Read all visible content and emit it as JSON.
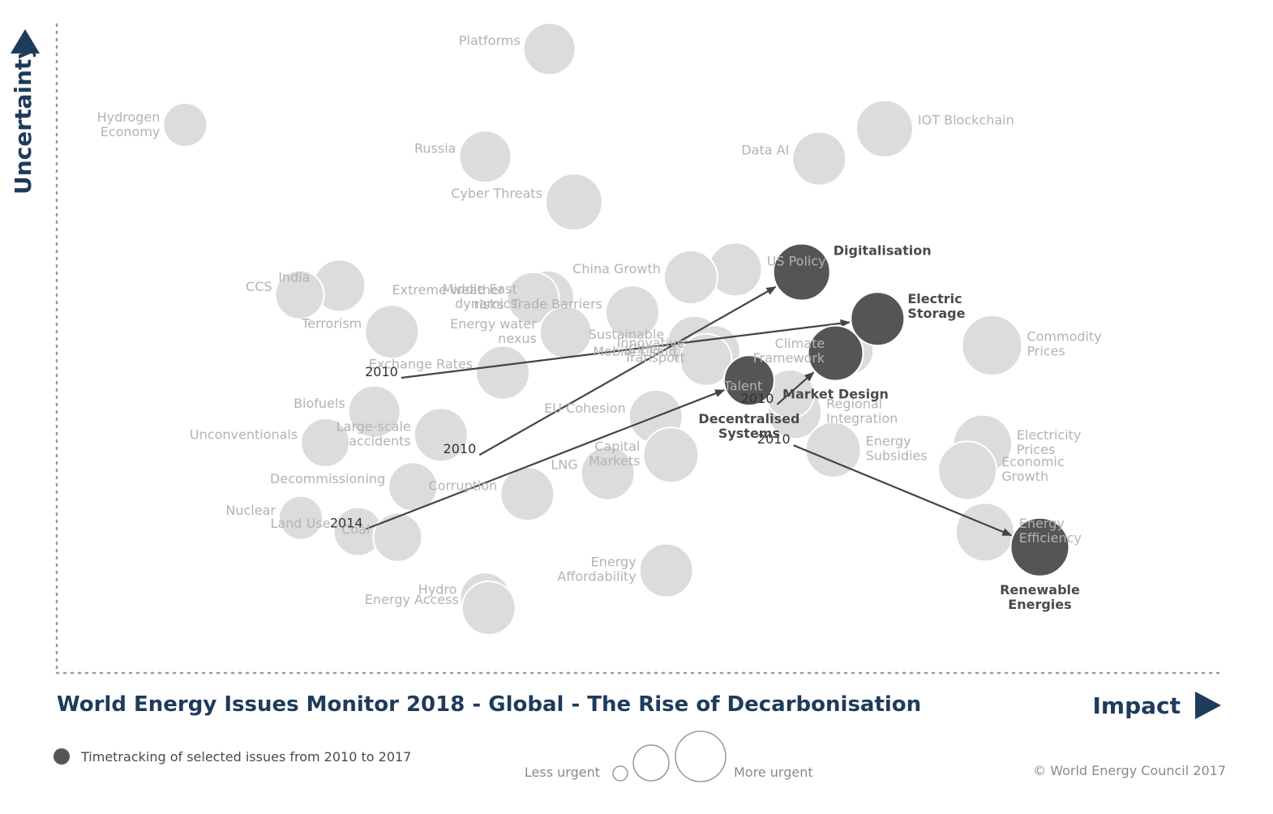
{
  "chart_data": {
    "type": "scatter",
    "title": "World Energy Issues Monitor 2018 - Global - The Rise of Decarbonisation",
    "xlabel": "Impact",
    "ylabel": "Uncertainty",
    "xlim": [
      0,
      100
    ],
    "ylim": [
      0,
      100
    ],
    "colors": {
      "issue": "#dcdcdc",
      "highlight": "#555555",
      "accent": "#1f3b5b"
    },
    "issues": [
      {
        "name": "Platforms",
        "x": 42.2,
        "y": 96.2,
        "r": 32
      },
      {
        "name": "Hydrogen Economy",
        "x": 11.0,
        "y": 84.5,
        "r": 27
      },
      {
        "name": "Russia",
        "x": 36.7,
        "y": 79.6,
        "r": 32
      },
      {
        "name": "Cyber Threats",
        "x": 44.3,
        "y": 72.6,
        "r": 35
      },
      {
        "name": "IOT Blockchain",
        "x": 70.9,
        "y": 83.9,
        "r": 35
      },
      {
        "name": "Data AI",
        "x": 65.3,
        "y": 79.3,
        "r": 33
      },
      {
        "name": "US Policy",
        "x": 58.1,
        "y": 62.2,
        "r": 33
      },
      {
        "name": "China Growth",
        "x": 54.3,
        "y": 61.0,
        "r": 33
      },
      {
        "name": "India",
        "x": 24.2,
        "y": 59.7,
        "r": 32
      },
      {
        "name": "CCS",
        "x": 20.8,
        "y": 58.3,
        "r": 30
      },
      {
        "name": "Terrorism",
        "x": 28.7,
        "y": 52.6,
        "r": 33
      },
      {
        "name": "Middle East dynamics",
        "x": 42.0,
        "y": 57.9,
        "r": 33
      },
      {
        "name": "Extreme weather risks",
        "x": 40.8,
        "y": 57.8,
        "r": 32
      },
      {
        "name": "Trade Barriers",
        "x": 49.3,
        "y": 55.6,
        "r": 33
      },
      {
        "name": "Exchange Rates",
        "x": 38.2,
        "y": 46.3,
        "r": 33
      },
      {
        "name": "Energy water nexus",
        "x": 43.6,
        "y": 52.5,
        "r": 32
      },
      {
        "name": "Sustainable Cities",
        "x": 54.6,
        "y": 50.9,
        "r": 33
      },
      {
        "name": "Innovative Transport",
        "x": 56.3,
        "y": 49.6,
        "r": 32
      },
      {
        "name": "Mobile Cloud",
        "x": 55.6,
        "y": 48.3,
        "r": 32
      },
      {
        "name": "Climate Framework",
        "x": 68.0,
        "y": 49.6,
        "r": 28
      },
      {
        "name": "Commodity Prices",
        "x": 80.1,
        "y": 50.5,
        "r": 37
      },
      {
        "name": "Biofuels",
        "x": 27.2,
        "y": 40.3,
        "r": 32
      },
      {
        "name": "Unconventionals",
        "x": 23.0,
        "y": 35.5,
        "r": 30
      },
      {
        "name": "Large-scale accidents",
        "x": 32.9,
        "y": 36.7,
        "r": 33
      },
      {
        "name": "EU Cohesion",
        "x": 51.3,
        "y": 39.5,
        "r": 33
      },
      {
        "name": "Capital Markets",
        "x": 52.6,
        "y": 33.6,
        "r": 34
      },
      {
        "name": "Regional Integration",
        "x": 63.2,
        "y": 40.2,
        "r": 33
      },
      {
        "name": "Talent",
        "x": 62.8,
        "y": 43.0,
        "r": 30
      },
      {
        "name": "Energy Subsidies",
        "x": 66.5,
        "y": 34.4,
        "r": 34
      },
      {
        "name": "Electricity Prices",
        "x": 79.3,
        "y": 35.3,
        "r": 36
      },
      {
        "name": "Economic Growth",
        "x": 78.0,
        "y": 31.2,
        "r": 36
      },
      {
        "name": "Decommissioning",
        "x": 30.5,
        "y": 28.7,
        "r": 30
      },
      {
        "name": "Corruption",
        "x": 40.3,
        "y": 27.6,
        "r": 33
      },
      {
        "name": "LNG",
        "x": 47.2,
        "y": 30.8,
        "r": 33
      },
      {
        "name": "Nuclear",
        "x": 20.9,
        "y": 23.9,
        "r": 27
      },
      {
        "name": "Land Use",
        "x": 25.8,
        "y": 21.8,
        "r": 30
      },
      {
        "name": "Coal",
        "x": 29.2,
        "y": 20.9,
        "r": 30
      },
      {
        "name": "Energy Efficiency",
        "x": 79.5,
        "y": 21.7,
        "r": 36
      },
      {
        "name": "Hydro",
        "x": 36.7,
        "y": 11.6,
        "r": 31
      },
      {
        "name": "Energy Access",
        "x": 37.0,
        "y": 10.0,
        "r": 33
      },
      {
        "name": "Energy Affordability",
        "x": 52.2,
        "y": 15.8,
        "r": 33
      }
    ],
    "highlighted": [
      {
        "name": "Digitalisation",
        "x": 63.8,
        "y": 61.8,
        "r": 35,
        "from": {
          "year": "2010",
          "x": 36.2,
          "y": 33.6
        }
      },
      {
        "name": "Electric Storage",
        "x": 70.3,
        "y": 54.6,
        "r": 33,
        "from": {
          "year": "2010",
          "x": 29.5,
          "y": 45.5
        }
      },
      {
        "name": "Market Design",
        "x": 66.7,
        "y": 49.3,
        "r": 34,
        "from": {
          "year": "2010",
          "x": 61.7,
          "y": 41.4
        }
      },
      {
        "name": "Decentralised Systems",
        "x": 59.3,
        "y": 45.1,
        "r": 31,
        "from": {
          "year": "2014",
          "x": 26.5,
          "y": 22.2
        }
      },
      {
        "name": "Renewable Energies",
        "x": 84.2,
        "y": 19.4,
        "r": 36,
        "from": {
          "year": "2010",
          "x": 63.1,
          "y": 35.1
        }
      }
    ],
    "legend": {
      "timetracking": "Timetracking of selected issues from 2010 to 2017",
      "less_urgent": "Less urgent",
      "more_urgent": "More urgent"
    }
  },
  "footer": {
    "copyright": "© World Energy Council 2017"
  }
}
